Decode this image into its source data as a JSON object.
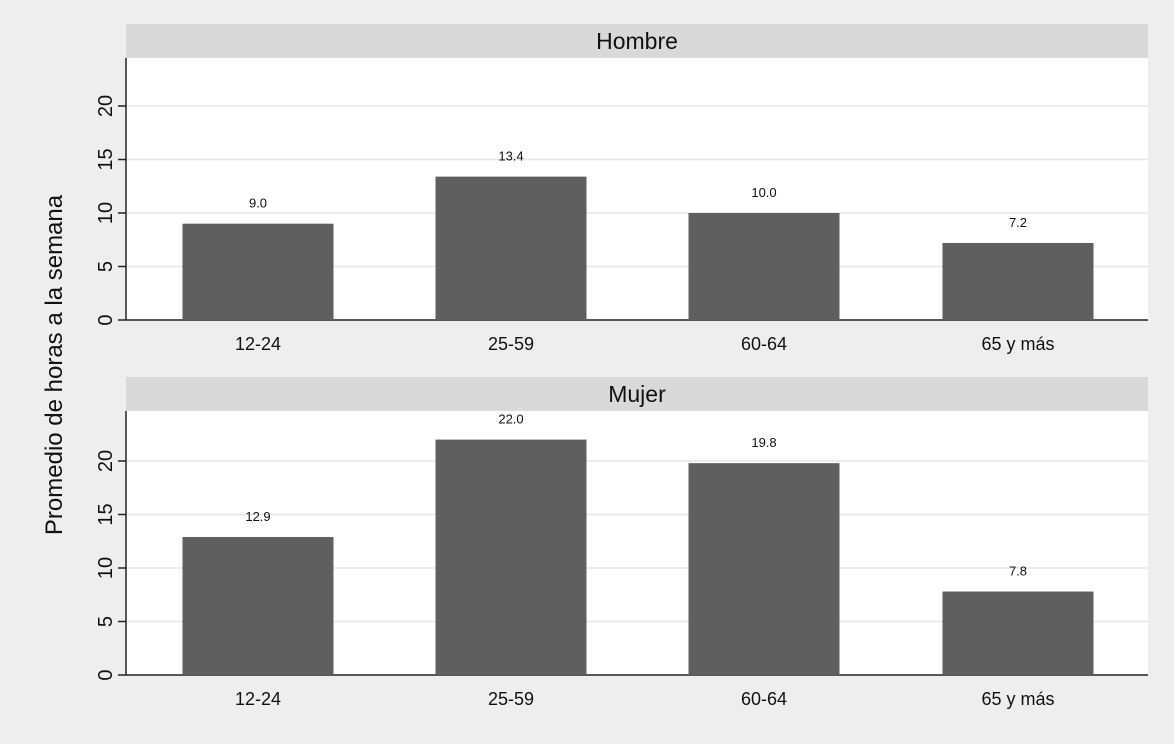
{
  "chart_data": [
    {
      "type": "bar",
      "title": "Hombre",
      "categories": [
        "12-24",
        "25-59",
        "60-64",
        "65 y más"
      ],
      "values": [
        9.0,
        13.4,
        10.0,
        7.2
      ],
      "value_labels": [
        "9.0",
        "13.4",
        "10.0",
        "7.2"
      ],
      "ylabel": "Promedio de horas a la semana",
      "yticks": [
        0,
        5,
        10,
        15,
        20
      ],
      "ylim": [
        0,
        24.5
      ],
      "grid": true
    },
    {
      "type": "bar",
      "title": "Mujer",
      "categories": [
        "12-24",
        "25-59",
        "60-64",
        "65 y más"
      ],
      "values": [
        12.9,
        22.0,
        19.8,
        7.8
      ],
      "value_labels": [
        "12.9",
        "22.0",
        "19.8",
        "7.8"
      ],
      "ylabel": "Promedio de horas a la semana",
      "yticks": [
        0,
        5,
        10,
        15,
        20
      ],
      "ylim": [
        0,
        24.5
      ],
      "grid": true
    }
  ],
  "shared_ylabel": "Promedio de horas a la semana",
  "colors": {
    "background": "#eeeeee",
    "plot_background": "#ffffff",
    "strip": "#d9d9d9",
    "bar": "#5f5f5f",
    "grid": "#e6e6e6",
    "axis": "#222222",
    "text": "#111111"
  }
}
